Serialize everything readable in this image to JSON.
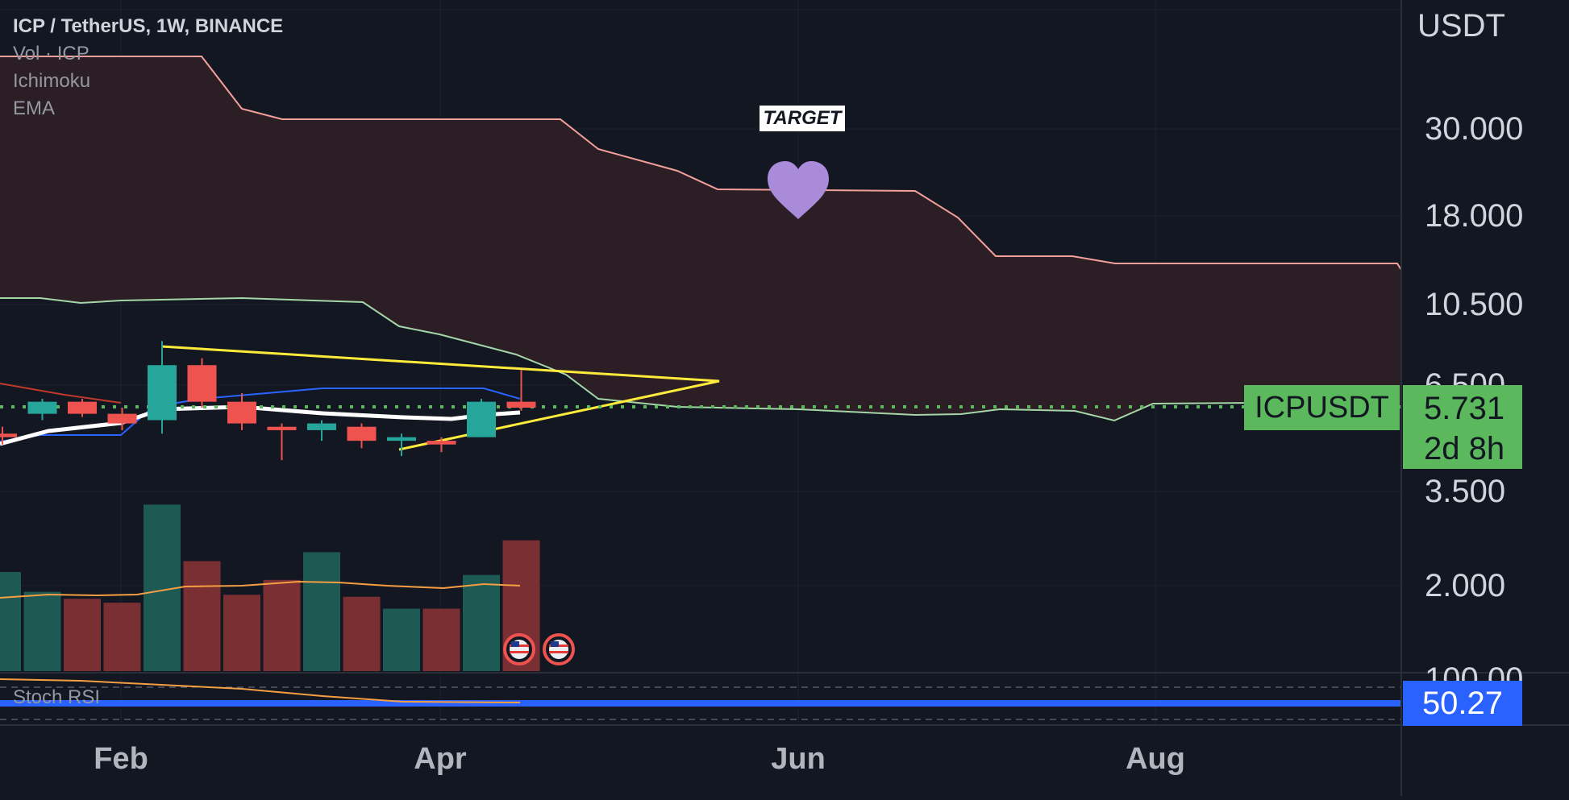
{
  "legend": {
    "title": "ICP / TetherUS, 1W, BINANCE",
    "indicators": [
      "Vol · ICP",
      "Ichimoku",
      "EMA"
    ]
  },
  "price_axis": {
    "currency": "USDT",
    "ticks": [
      "30.000",
      "18.000",
      "10.500",
      "6.500",
      "3.500",
      "2.000",
      "100.00"
    ]
  },
  "time_axis": {
    "ticks": [
      "Feb",
      "Apr",
      "Jun",
      "Aug"
    ]
  },
  "last_price": {
    "symbol": "ICPUSDT",
    "value": "5.731",
    "countdown": "2d 8h"
  },
  "stoch_rsi": {
    "label": "Stoch RSI",
    "value": "50.27"
  },
  "annotation": {
    "target_label": "TARGET"
  },
  "colors": {
    "background": "#131722",
    "up": "#26a69a",
    "down": "#ef5350",
    "cloud": "#2b1e25",
    "triangle": "#ffeb3b",
    "heart": "#a98bd9",
    "price_line": "#5cb85c",
    "rsi": "#2962ff"
  },
  "chart_data": {
    "type": "candlestick",
    "timeframe": "1W",
    "scale": "log",
    "candles": [
      {
        "o": 4.9,
        "h": 5.1,
        "l": 4.6,
        "c": 4.8
      },
      {
        "o": 5.5,
        "h": 6.0,
        "l": 5.3,
        "c": 5.9
      },
      {
        "o": 5.9,
        "h": 6.0,
        "l": 5.4,
        "c": 5.5
      },
      {
        "o": 5.5,
        "h": 5.7,
        "l": 5.0,
        "c": 5.2
      },
      {
        "o": 5.3,
        "h": 8.4,
        "l": 4.9,
        "c": 7.3
      },
      {
        "o": 7.3,
        "h": 7.6,
        "l": 5.7,
        "c": 5.9
      },
      {
        "o": 5.9,
        "h": 6.2,
        "l": 5.0,
        "c": 5.2
      },
      {
        "o": 5.1,
        "h": 5.2,
        "l": 4.2,
        "c": 5.0
      },
      {
        "o": 5.0,
        "h": 5.3,
        "l": 4.7,
        "c": 5.2
      },
      {
        "o": 5.1,
        "h": 5.2,
        "l": 4.5,
        "c": 4.7
      },
      {
        "o": 4.7,
        "h": 4.9,
        "l": 4.3,
        "c": 4.8
      },
      {
        "o": 4.7,
        "h": 4.8,
        "l": 4.4,
        "c": 4.6
      },
      {
        "o": 4.8,
        "h": 6.0,
        "l": 4.8,
        "c": 5.9
      },
      {
        "o": 5.9,
        "h": 7.1,
        "l": 5.6,
        "c": 5.7
      }
    ],
    "volume": [
      {
        "v": 1.0,
        "up": true
      },
      {
        "v": 0.8,
        "up": true
      },
      {
        "v": 0.73,
        "up": false
      },
      {
        "v": 0.69,
        "up": false
      },
      {
        "v": 1.68,
        "up": true
      },
      {
        "v": 1.11,
        "up": false
      },
      {
        "v": 0.77,
        "up": false
      },
      {
        "v": 0.92,
        "up": false
      },
      {
        "v": 1.2,
        "up": true
      },
      {
        "v": 0.75,
        "up": false
      },
      {
        "v": 0.63,
        "up": true
      },
      {
        "v": 0.63,
        "up": false
      },
      {
        "v": 0.97,
        "up": true
      },
      {
        "v": 1.32,
        "up": false
      }
    ]
  }
}
